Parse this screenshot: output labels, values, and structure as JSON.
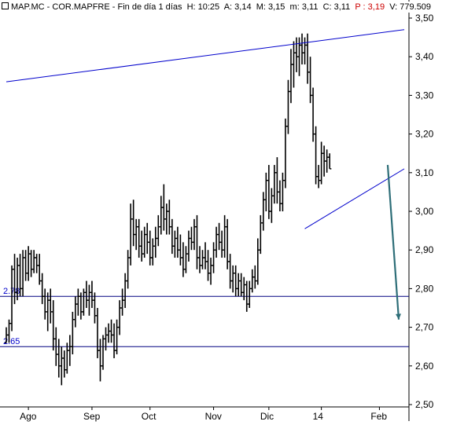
{
  "header": {
    "symbol": "MAP.MC",
    "name": "COR.MAPFRE",
    "period": "Fin de día 1 días",
    "high_label": "H:",
    "high_value": "10:25",
    "a_label": "A:",
    "a_value": "3,14",
    "m_label": "M:",
    "m_value": "3,15",
    "mn_label": "m:",
    "mn_value": "3,11",
    "c_label": "C:",
    "c_value": "3,11",
    "p_label": "P :",
    "p_value": "3,19",
    "v_label": "V:",
    "v_value": "779.509"
  },
  "colors": {
    "bars": "#000000",
    "trendline": "#0000cc",
    "hline": "#000080",
    "arrow": "#2e6e78",
    "grid": "#cccccc",
    "p_value": "#cc0000"
  },
  "chart_data": {
    "type": "ohlc",
    "title": "",
    "xlabel": "",
    "ylabel": "",
    "ylim": [
      2.5,
      3.5
    ],
    "y_ticks": [
      "3,50",
      "3,40",
      "3,30",
      "3,20",
      "3,10",
      "3,00",
      "2,90",
      "2,80",
      "2,70",
      "2,60",
      "2,50"
    ],
    "y_tick_values": [
      3.5,
      3.4,
      3.3,
      3.2,
      3.1,
      3.0,
      2.9,
      2.8,
      2.7,
      2.6,
      2.5
    ],
    "x_ticks": [
      "Ago",
      "Sep",
      "Oct",
      "Nov",
      "Dic",
      "14",
      "Feb"
    ],
    "x_tick_days": [
      8,
      31,
      52,
      75,
      95,
      114,
      135
    ],
    "num_days": 141,
    "hlines": [
      {
        "value": 2.78,
        "label": "2.78"
      },
      {
        "value": 2.65,
        "label": "2.65"
      }
    ],
    "trendlines": [
      {
        "name": "upper-resistance",
        "from": [
          0,
          3.335
        ],
        "to": [
          144,
          3.47
        ]
      },
      {
        "name": "lower-support",
        "from": [
          108,
          2.955
        ],
        "to": [
          144,
          3.11
        ]
      }
    ],
    "arrow": {
      "from": [
        138,
        3.12
      ],
      "to": [
        142,
        2.72
      ]
    },
    "ohlc": [
      {
        "o": 2.66,
        "h": 2.7,
        "l": 2.66,
        "c": 2.68
      },
      {
        "o": 2.68,
        "h": 2.72,
        "l": 2.66,
        "c": 2.71
      },
      {
        "o": 2.71,
        "h": 2.86,
        "l": 2.69,
        "c": 2.85
      },
      {
        "o": 2.85,
        "h": 2.89,
        "l": 2.76,
        "c": 2.79
      },
      {
        "o": 2.79,
        "h": 2.88,
        "l": 2.77,
        "c": 2.86
      },
      {
        "o": 2.86,
        "h": 2.89,
        "l": 2.78,
        "c": 2.8
      },
      {
        "o": 2.8,
        "h": 2.9,
        "l": 2.78,
        "c": 2.88
      },
      {
        "o": 2.88,
        "h": 2.9,
        "l": 2.82,
        "c": 2.84
      },
      {
        "o": 2.84,
        "h": 2.91,
        "l": 2.82,
        "c": 2.89
      },
      {
        "o": 2.89,
        "h": 2.9,
        "l": 2.83,
        "c": 2.85
      },
      {
        "o": 2.85,
        "h": 2.9,
        "l": 2.84,
        "c": 2.88
      },
      {
        "o": 2.88,
        "h": 2.89,
        "l": 2.84,
        "c": 2.86
      },
      {
        "o": 2.86,
        "h": 2.89,
        "l": 2.81,
        "c": 2.82
      },
      {
        "o": 2.82,
        "h": 2.84,
        "l": 2.76,
        "c": 2.78
      },
      {
        "o": 2.78,
        "h": 2.8,
        "l": 2.72,
        "c": 2.74
      },
      {
        "o": 2.74,
        "h": 2.79,
        "l": 2.69,
        "c": 2.77
      },
      {
        "o": 2.77,
        "h": 2.8,
        "l": 2.71,
        "c": 2.74
      },
      {
        "o": 2.74,
        "h": 2.77,
        "l": 2.64,
        "c": 2.67
      },
      {
        "o": 2.67,
        "h": 2.7,
        "l": 2.6,
        "c": 2.63
      },
      {
        "o": 2.63,
        "h": 2.67,
        "l": 2.57,
        "c": 2.6
      },
      {
        "o": 2.6,
        "h": 2.65,
        "l": 2.55,
        "c": 2.62
      },
      {
        "o": 2.62,
        "h": 2.64,
        "l": 2.57,
        "c": 2.59
      },
      {
        "o": 2.59,
        "h": 2.66,
        "l": 2.58,
        "c": 2.64
      },
      {
        "o": 2.64,
        "h": 2.68,
        "l": 2.6,
        "c": 2.65
      },
      {
        "o": 2.65,
        "h": 2.74,
        "l": 2.63,
        "c": 2.72
      },
      {
        "o": 2.72,
        "h": 2.78,
        "l": 2.7,
        "c": 2.76
      },
      {
        "o": 2.76,
        "h": 2.8,
        "l": 2.73,
        "c": 2.78
      },
      {
        "o": 2.78,
        "h": 2.79,
        "l": 2.72,
        "c": 2.74
      },
      {
        "o": 2.74,
        "h": 2.8,
        "l": 2.73,
        "c": 2.79
      },
      {
        "o": 2.79,
        "h": 2.82,
        "l": 2.75,
        "c": 2.77
      },
      {
        "o": 2.77,
        "h": 2.81,
        "l": 2.73,
        "c": 2.79
      },
      {
        "o": 2.79,
        "h": 2.82,
        "l": 2.75,
        "c": 2.77
      },
      {
        "o": 2.77,
        "h": 2.79,
        "l": 2.71,
        "c": 2.73
      },
      {
        "o": 2.73,
        "h": 2.75,
        "l": 2.62,
        "c": 2.64
      },
      {
        "o": 2.64,
        "h": 2.67,
        "l": 2.56,
        "c": 2.6
      },
      {
        "o": 2.6,
        "h": 2.68,
        "l": 2.59,
        "c": 2.67
      },
      {
        "o": 2.67,
        "h": 2.7,
        "l": 2.64,
        "c": 2.68
      },
      {
        "o": 2.68,
        "h": 2.71,
        "l": 2.66,
        "c": 2.69
      },
      {
        "o": 2.69,
        "h": 2.72,
        "l": 2.66,
        "c": 2.68
      },
      {
        "o": 2.68,
        "h": 2.71,
        "l": 2.62,
        "c": 2.64
      },
      {
        "o": 2.64,
        "h": 2.72,
        "l": 2.63,
        "c": 2.7
      },
      {
        "o": 2.7,
        "h": 2.77,
        "l": 2.68,
        "c": 2.75
      },
      {
        "o": 2.75,
        "h": 2.8,
        "l": 2.73,
        "c": 2.77
      },
      {
        "o": 2.77,
        "h": 2.84,
        "l": 2.75,
        "c": 2.82
      },
      {
        "o": 2.82,
        "h": 2.9,
        "l": 2.8,
        "c": 2.88
      },
      {
        "o": 2.88,
        "h": 3.02,
        "l": 2.86,
        "c": 2.98
      },
      {
        "o": 2.98,
        "h": 3.03,
        "l": 2.91,
        "c": 2.94
      },
      {
        "o": 2.94,
        "h": 2.98,
        "l": 2.9,
        "c": 2.96
      },
      {
        "o": 2.96,
        "h": 2.98,
        "l": 2.88,
        "c": 2.91
      },
      {
        "o": 2.91,
        "h": 2.95,
        "l": 2.87,
        "c": 2.89
      },
      {
        "o": 2.89,
        "h": 2.96,
        "l": 2.88,
        "c": 2.94
      },
      {
        "o": 2.94,
        "h": 2.97,
        "l": 2.89,
        "c": 2.92
      },
      {
        "o": 2.92,
        "h": 2.95,
        "l": 2.86,
        "c": 2.88
      },
      {
        "o": 2.88,
        "h": 2.93,
        "l": 2.86,
        "c": 2.91
      },
      {
        "o": 2.91,
        "h": 2.96,
        "l": 2.88,
        "c": 2.93
      },
      {
        "o": 2.93,
        "h": 2.99,
        "l": 2.91,
        "c": 2.96
      },
      {
        "o": 2.96,
        "h": 3.04,
        "l": 2.94,
        "c": 3.01
      },
      {
        "o": 3.01,
        "h": 3.07,
        "l": 2.95,
        "c": 2.98
      },
      {
        "o": 2.98,
        "h": 3.02,
        "l": 2.94,
        "c": 3.0
      },
      {
        "o": 3.0,
        "h": 3.03,
        "l": 2.94,
        "c": 2.96
      },
      {
        "o": 2.96,
        "h": 2.98,
        "l": 2.89,
        "c": 2.91
      },
      {
        "o": 2.91,
        "h": 2.95,
        "l": 2.88,
        "c": 2.93
      },
      {
        "o": 2.93,
        "h": 2.96,
        "l": 2.88,
        "c": 2.9
      },
      {
        "o": 2.9,
        "h": 2.94,
        "l": 2.86,
        "c": 2.88
      },
      {
        "o": 2.88,
        "h": 2.92,
        "l": 2.83,
        "c": 2.85
      },
      {
        "o": 2.85,
        "h": 2.91,
        "l": 2.84,
        "c": 2.89
      },
      {
        "o": 2.89,
        "h": 2.95,
        "l": 2.87,
        "c": 2.93
      },
      {
        "o": 2.93,
        "h": 2.96,
        "l": 2.9,
        "c": 2.92
      },
      {
        "o": 2.92,
        "h": 2.98,
        "l": 2.9,
        "c": 2.96
      },
      {
        "o": 2.96,
        "h": 2.99,
        "l": 2.85,
        "c": 2.88
      },
      {
        "o": 2.88,
        "h": 2.91,
        "l": 2.84,
        "c": 2.86
      },
      {
        "o": 2.86,
        "h": 2.9,
        "l": 2.85,
        "c": 2.88
      },
      {
        "o": 2.88,
        "h": 2.92,
        "l": 2.85,
        "c": 2.87
      },
      {
        "o": 2.87,
        "h": 2.9,
        "l": 2.82,
        "c": 2.84
      },
      {
        "o": 2.84,
        "h": 2.88,
        "l": 2.81,
        "c": 2.86
      },
      {
        "o": 2.86,
        "h": 2.92,
        "l": 2.84,
        "c": 2.9
      },
      {
        "o": 2.9,
        "h": 2.96,
        "l": 2.88,
        "c": 2.94
      },
      {
        "o": 2.94,
        "h": 2.97,
        "l": 2.9,
        "c": 2.92
      },
      {
        "o": 2.92,
        "h": 2.95,
        "l": 2.88,
        "c": 2.9
      },
      {
        "o": 2.9,
        "h": 2.99,
        "l": 2.88,
        "c": 2.96
      },
      {
        "o": 2.96,
        "h": 2.98,
        "l": 2.85,
        "c": 2.87
      },
      {
        "o": 2.87,
        "h": 2.89,
        "l": 2.8,
        "c": 2.82
      },
      {
        "o": 2.82,
        "h": 2.86,
        "l": 2.79,
        "c": 2.84
      },
      {
        "o": 2.84,
        "h": 2.86,
        "l": 2.78,
        "c": 2.8
      },
      {
        "o": 2.8,
        "h": 2.84,
        "l": 2.78,
        "c": 2.82
      },
      {
        "o": 2.82,
        "h": 2.84,
        "l": 2.78,
        "c": 2.79
      },
      {
        "o": 2.79,
        "h": 2.83,
        "l": 2.77,
        "c": 2.81
      },
      {
        "o": 2.81,
        "h": 2.82,
        "l": 2.74,
        "c": 2.76
      },
      {
        "o": 2.76,
        "h": 2.82,
        "l": 2.75,
        "c": 2.8
      },
      {
        "o": 2.8,
        "h": 2.85,
        "l": 2.79,
        "c": 2.83
      },
      {
        "o": 2.83,
        "h": 2.86,
        "l": 2.8,
        "c": 2.82
      },
      {
        "o": 2.82,
        "h": 2.93,
        "l": 2.81,
        "c": 2.9
      },
      {
        "o": 2.9,
        "h": 2.99,
        "l": 2.89,
        "c": 2.97
      },
      {
        "o": 2.97,
        "h": 3.05,
        "l": 2.95,
        "c": 3.03
      },
      {
        "o": 3.03,
        "h": 3.1,
        "l": 3.0,
        "c": 3.08
      },
      {
        "o": 3.08,
        "h": 3.12,
        "l": 2.98,
        "c": 3.0
      },
      {
        "o": 3.0,
        "h": 3.06,
        "l": 2.97,
        "c": 3.04
      },
      {
        "o": 3.04,
        "h": 3.12,
        "l": 3.02,
        "c": 3.1
      },
      {
        "o": 3.1,
        "h": 3.14,
        "l": 3.02,
        "c": 3.05
      },
      {
        "o": 3.05,
        "h": 3.08,
        "l": 3.0,
        "c": 3.02
      },
      {
        "o": 3.02,
        "h": 3.1,
        "l": 3.0,
        "c": 3.08
      },
      {
        "o": 3.08,
        "h": 3.24,
        "l": 3.06,
        "c": 3.22
      },
      {
        "o": 3.22,
        "h": 3.34,
        "l": 3.2,
        "c": 3.31
      },
      {
        "o": 3.31,
        "h": 3.42,
        "l": 3.28,
        "c": 3.38
      },
      {
        "o": 3.38,
        "h": 3.44,
        "l": 3.32,
        "c": 3.41
      },
      {
        "o": 3.41,
        "h": 3.45,
        "l": 3.36,
        "c": 3.4
      },
      {
        "o": 3.4,
        "h": 3.45,
        "l": 3.35,
        "c": 3.43
      },
      {
        "o": 3.43,
        "h": 3.46,
        "l": 3.38,
        "c": 3.41
      },
      {
        "o": 3.41,
        "h": 3.45,
        "l": 3.38,
        "c": 3.43
      },
      {
        "o": 3.43,
        "h": 3.46,
        "l": 3.33,
        "c": 3.36
      },
      {
        "o": 3.36,
        "h": 3.4,
        "l": 3.28,
        "c": 3.3
      },
      {
        "o": 3.3,
        "h": 3.32,
        "l": 3.18,
        "c": 3.2
      },
      {
        "o": 3.2,
        "h": 3.22,
        "l": 3.07,
        "c": 3.09
      },
      {
        "o": 3.09,
        "h": 3.12,
        "l": 3.06,
        "c": 3.08
      },
      {
        "o": 3.08,
        "h": 3.18,
        "l": 3.07,
        "c": 3.15
      },
      {
        "o": 3.15,
        "h": 3.17,
        "l": 3.09,
        "c": 3.13
      },
      {
        "o": 3.13,
        "h": 3.16,
        "l": 3.1,
        "c": 3.14
      },
      {
        "o": 3.14,
        "h": 3.15,
        "l": 3.11,
        "c": 3.11
      }
    ]
  }
}
